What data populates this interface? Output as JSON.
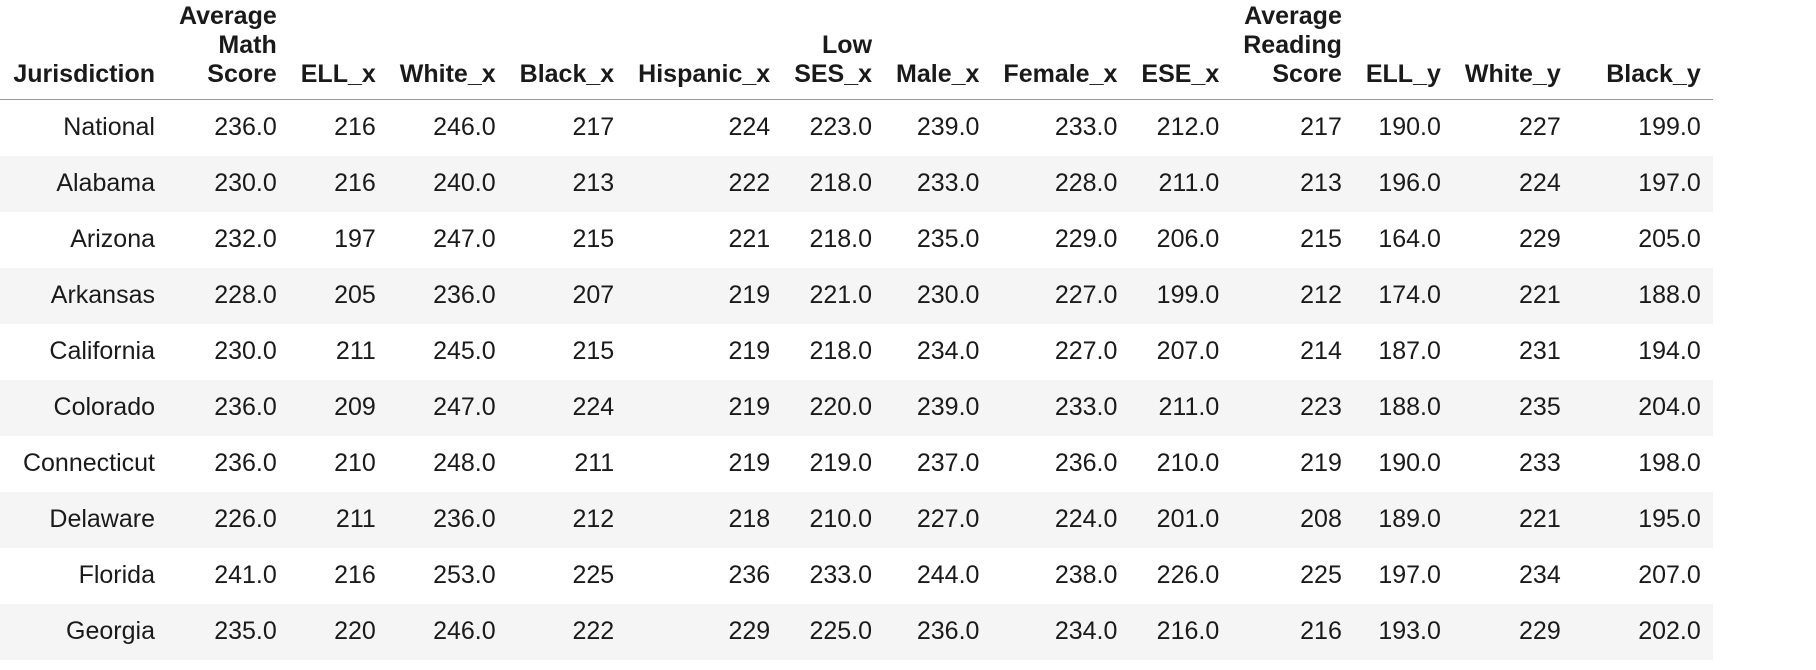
{
  "table": {
    "columns": [
      {
        "lines": [
          "Jurisdiction"
        ]
      },
      {
        "lines": [
          "Average",
          "Math",
          "Score"
        ]
      },
      {
        "lines": [
          "ELL_x"
        ]
      },
      {
        "lines": [
          "White_x"
        ]
      },
      {
        "lines": [
          "Black_x"
        ]
      },
      {
        "lines": [
          "Hispanic_x"
        ]
      },
      {
        "lines": [
          "Low",
          "SES_x"
        ]
      },
      {
        "lines": [
          "Male_x"
        ]
      },
      {
        "lines": [
          "Female_x"
        ]
      },
      {
        "lines": [
          "ESE_x"
        ]
      },
      {
        "lines": [
          "Average",
          "Reading",
          "Score"
        ]
      },
      {
        "lines": [
          "ELL_y"
        ]
      },
      {
        "lines": [
          "White_y"
        ]
      },
      {
        "lines": [
          "Black_y"
        ]
      }
    ],
    "rows": [
      [
        "National",
        "236.0",
        "216",
        "246.0",
        "217",
        "224",
        "223.0",
        "239.0",
        "233.0",
        "212.0",
        "217",
        "190.0",
        "227",
        "199.0"
      ],
      [
        "Alabama",
        "230.0",
        "216",
        "240.0",
        "213",
        "222",
        "218.0",
        "233.0",
        "228.0",
        "211.0",
        "213",
        "196.0",
        "224",
        "197.0"
      ],
      [
        "Arizona",
        "232.0",
        "197",
        "247.0",
        "215",
        "221",
        "218.0",
        "235.0",
        "229.0",
        "206.0",
        "215",
        "164.0",
        "229",
        "205.0"
      ],
      [
        "Arkansas",
        "228.0",
        "205",
        "236.0",
        "207",
        "219",
        "221.0",
        "230.0",
        "227.0",
        "199.0",
        "212",
        "174.0",
        "221",
        "188.0"
      ],
      [
        "California",
        "230.0",
        "211",
        "245.0",
        "215",
        "219",
        "218.0",
        "234.0",
        "227.0",
        "207.0",
        "214",
        "187.0",
        "231",
        "194.0"
      ],
      [
        "Colorado",
        "236.0",
        "209",
        "247.0",
        "224",
        "219",
        "220.0",
        "239.0",
        "233.0",
        "211.0",
        "223",
        "188.0",
        "235",
        "204.0"
      ],
      [
        "Connecticut",
        "236.0",
        "210",
        "248.0",
        "211",
        "219",
        "219.0",
        "237.0",
        "236.0",
        "210.0",
        "219",
        "190.0",
        "233",
        "198.0"
      ],
      [
        "Delaware",
        "226.0",
        "211",
        "236.0",
        "212",
        "218",
        "210.0",
        "227.0",
        "224.0",
        "201.0",
        "208",
        "189.0",
        "221",
        "195.0"
      ],
      [
        "Florida",
        "241.0",
        "216",
        "253.0",
        "225",
        "236",
        "233.0",
        "244.0",
        "238.0",
        "226.0",
        "225",
        "197.0",
        "234",
        "207.0"
      ],
      [
        "Georgia",
        "235.0",
        "220",
        "246.0",
        "222",
        "229",
        "225.0",
        "236.0",
        "234.0",
        "216.0",
        "216",
        "193.0",
        "229",
        "202.0"
      ]
    ]
  }
}
